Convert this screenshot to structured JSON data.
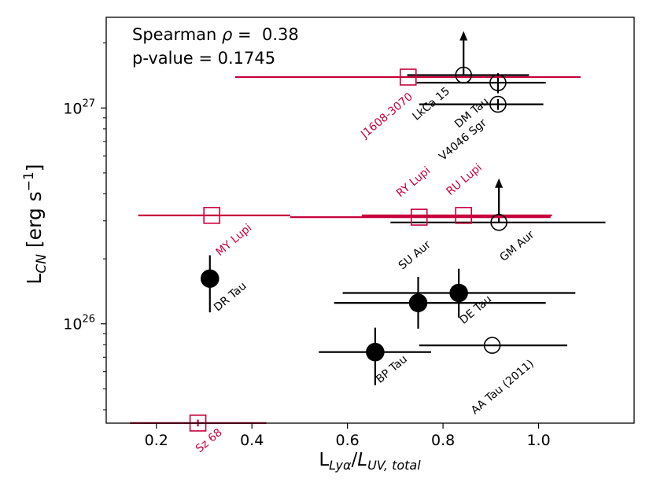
{
  "chart_data": {
    "type": "scatter",
    "x_axis": {
      "label_base": "L",
      "label_sub": "Lyα",
      "label_sep": "/",
      "label_base2": "L",
      "label_sub2": "UV, total",
      "range": [
        0.095,
        1.2
      ],
      "ticks": [
        0.2,
        0.4,
        0.6,
        0.8,
        1.0
      ],
      "tick_labels": [
        "0.2",
        "0.4",
        "0.6",
        "0.8",
        "1.0"
      ]
    },
    "y_axis": {
      "scale": "log",
      "label_base": "L",
      "label_sub": "CN",
      "label_unit": " [erg s",
      "label_exp": "−1",
      "label_close": "]",
      "range_log10": [
        25.54,
        27.42
      ],
      "major_ticks_log10": [
        26,
        27
      ],
      "major_tick_base": "10",
      "major_tick_exps": [
        "26",
        "27"
      ],
      "minor_ticks": [
        4e+25,
        5e+25,
        6e+25,
        7e+25,
        8e+25,
        9e+25,
        2e+26,
        3e+26,
        4e+26,
        5e+26,
        6e+26,
        7e+26,
        8e+26,
        9e+26,
        2e+27
      ]
    },
    "annotation": {
      "line1_prefix": "Spearman ",
      "line1_symbol": "ρ",
      "line1_suffix": " =  0.38",
      "line2": "p-value = 0.1745"
    },
    "colors": {
      "black": "#000000",
      "red": "#c8003c"
    },
    "points": [
      {
        "name": "LkCa 15",
        "x": 0.843,
        "y": 1.42e+27,
        "xerr": [
          0.725,
          0.98
        ],
        "yerr": [
          1.42e+27,
          1.42e+27
        ],
        "marker": "open-circle",
        "color": "black",
        "upper_arrow": true,
        "label": "LkCa 15"
      },
      {
        "name": "DM Tau",
        "x": 0.915,
        "y": 1.31e+27,
        "xerr": [
          0.745,
          1.015
        ],
        "yerr": [
          1.17e+27,
          1.45e+27
        ],
        "marker": "open-circle",
        "color": "black",
        "upper_arrow": false,
        "label": "DM Tau"
      },
      {
        "name": "V4046 Sgr",
        "x": 0.915,
        "y": 1.04e+27,
        "xerr": [
          0.75,
          1.01
        ],
        "yerr": [
          9.8e+26,
          1.1e+27
        ],
        "marker": "open-circle",
        "color": "black",
        "upper_arrow": false,
        "label": "V4046 Sgr"
      },
      {
        "name": "J1608-3070",
        "x": 0.727,
        "y": 1.39e+27,
        "xerr": [
          0.365,
          1.088
        ],
        "yerr": [
          1.39e+27,
          1.39e+27
        ],
        "marker": "open-square",
        "color": "red",
        "upper_arrow": false,
        "label": "J1608-3070"
      },
      {
        "name": "GM Aur",
        "x": 0.917,
        "y": 2.95e+26,
        "xerr": [
          0.69,
          1.14
        ],
        "yerr": [
          2.95e+26,
          2.95e+26
        ],
        "marker": "open-circle",
        "color": "black",
        "upper_arrow": true,
        "label": "GM Aur"
      },
      {
        "name": "MY Lupi",
        "x": 0.316,
        "y": 3.18e+26,
        "xerr": [
          0.162,
          0.48
        ],
        "yerr": [
          3.18e+26,
          3.18e+26
        ],
        "marker": "open-square",
        "color": "red",
        "upper_arrow": false,
        "label": "MY Lupi"
      },
      {
        "name": "RY Lupi",
        "x": 0.75,
        "y": 3.12e+26,
        "xerr": [
          0.48,
          1.025
        ],
        "yerr": [
          3.12e+26,
          3.12e+26
        ],
        "marker": "open-square",
        "color": "red",
        "upper_arrow": false,
        "label": "RY Lupi"
      },
      {
        "name": "RU Lupi",
        "x": 0.843,
        "y": 3.18e+26,
        "xerr": [
          0.63,
          1.028
        ],
        "yerr": [
          3.18e+26,
          3.18e+26
        ],
        "marker": "open-square",
        "color": "red",
        "upper_arrow": false,
        "label": "RU Lupi"
      },
      {
        "name": "DR Tau",
        "x": 0.312,
        "y": 1.62e+26,
        "xerr": [
          0.312,
          0.312
        ],
        "yerr": [
          1.13e+26,
          2.08e+26
        ],
        "marker": "filled-circle",
        "color": "black",
        "upper_arrow": false,
        "label": "DR Tau"
      },
      {
        "name": "SU Aur",
        "x": 0.748,
        "y": 1.25e+26,
        "xerr": [
          0.572,
          1.015
        ],
        "yerr": [
          9.5e+25,
          1.65e+26
        ],
        "marker": "filled-circle",
        "color": "black",
        "upper_arrow": false,
        "label": "SU Aur"
      },
      {
        "name": "DE Tau",
        "x": 0.833,
        "y": 1.39e+26,
        "xerr": [
          0.59,
          1.077
        ],
        "yerr": [
          1.07e+26,
          1.8e+26
        ],
        "marker": "filled-circle",
        "color": "black",
        "upper_arrow": false,
        "label": "DE Tau"
      },
      {
        "name": "BP Tau",
        "x": 0.658,
        "y": 7.4e+25,
        "xerr": [
          0.54,
          0.775
        ],
        "yerr": [
          5.2e+25,
          9.6e+25
        ],
        "marker": "filled-circle",
        "color": "black",
        "upper_arrow": false,
        "label": "BP Tau"
      },
      {
        "name": "AA Tau (2011)",
        "x": 0.903,
        "y": 7.95e+25,
        "xerr": [
          0.75,
          1.06
        ],
        "yerr": [
          7.95e+25,
          7.95e+25
        ],
        "marker": "open-circle",
        "color": "black",
        "upper_arrow": false,
        "label": "AA Tau (2011)"
      },
      {
        "name": "Sz 68",
        "x": 0.287,
        "y": 3.47e+25,
        "xerr": [
          0.145,
          0.43
        ],
        "yerr": [
          3.35e+25,
          3.6e+25
        ],
        "marker": "open-square",
        "color": "red",
        "upper_arrow": false,
        "label": "Sz 68"
      }
    ]
  }
}
